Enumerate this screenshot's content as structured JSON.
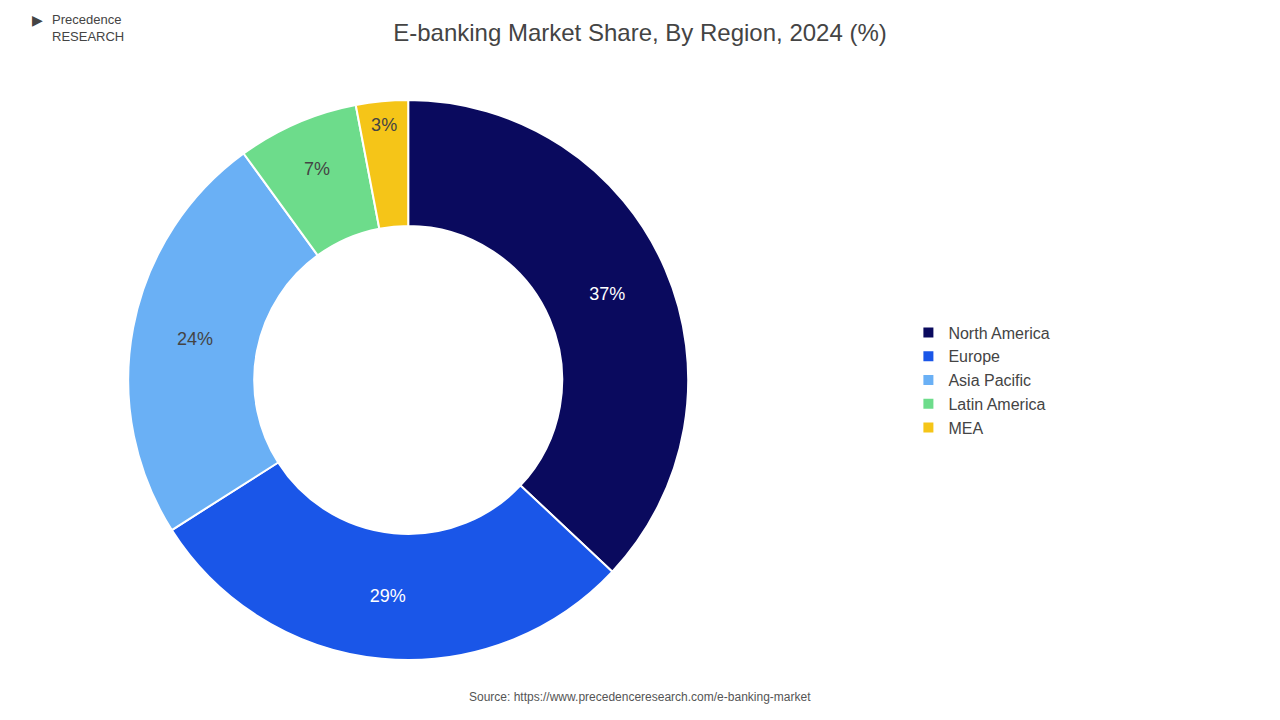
{
  "chart_data": {
    "type": "donut",
    "title": "E-banking Market Share, By Region, 2024 (%)",
    "categories": [
      "North America",
      "Europe",
      "Asia Pacific",
      "Latin America",
      "MEA"
    ],
    "values": [
      37,
      29,
      24,
      7,
      3
    ],
    "value_labels": [
      "37%",
      "29%",
      "24%",
      "7%",
      "3%"
    ],
    "colors": [
      "#0a0a5e",
      "#1a56e8",
      "#6ab0f5",
      "#6ddc8b",
      "#f5c518"
    ],
    "data_labels": true,
    "legend": "right",
    "annotations": [
      "Source: https://www.precedenceresearch.com/e-banking-market",
      "▶",
      "Precedence\nRESEARCH"
    ]
  }
}
